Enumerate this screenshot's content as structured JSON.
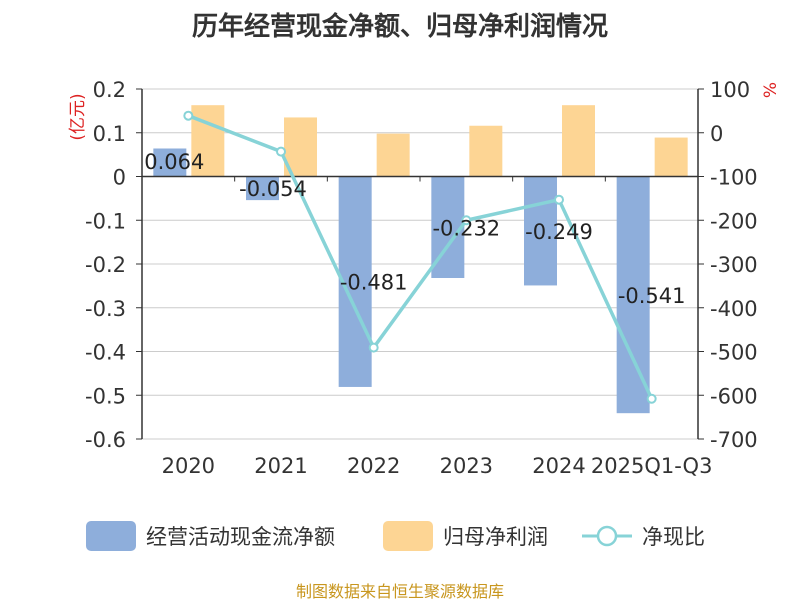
{
  "chart_data": {
    "type": "bar",
    "title": "历年经营现金净额、归母净利润情况",
    "categories": [
      "2020",
      "2021",
      "2022",
      "2023",
      "2024",
      "2025Q1-Q3"
    ],
    "series": [
      {
        "name": "经营活动现金流净额",
        "type": "bar",
        "axis": "left",
        "color": "#8eaedb",
        "values": [
          0.064,
          -0.054,
          -0.481,
          -0.232,
          -0.249,
          -0.541
        ],
        "labels": [
          "0.064",
          "-0.054",
          "-0.481",
          "-0.232",
          "-0.249",
          "-0.541"
        ]
      },
      {
        "name": "归母净利润",
        "type": "bar",
        "axis": "left",
        "color": "#fdd594",
        "values": [
          0.163,
          0.135,
          0.098,
          0.116,
          0.163,
          0.089
        ]
      },
      {
        "name": "净现比",
        "type": "line",
        "axis": "right",
        "color": "#87d3d7",
        "values": [
          39,
          -43,
          -491,
          -200,
          -153,
          -608
        ]
      }
    ],
    "y_left": {
      "label": "(亿元)",
      "min": -0.6,
      "max": 0.2,
      "ticks": [
        0.2,
        0.1,
        0,
        -0.1,
        -0.2,
        -0.3,
        -0.4,
        -0.5,
        -0.6
      ],
      "tick_labels": [
        "0.2",
        "0.1",
        "0",
        "-0.1",
        "-0.2",
        "-0.3",
        "-0.4",
        "-0.5",
        "-0.6"
      ]
    },
    "y_right": {
      "label": "%",
      "min": -700,
      "max": 100,
      "ticks": [
        100,
        0,
        -100,
        -200,
        -300,
        -400,
        -500,
        -600,
        -700
      ],
      "tick_labels": [
        "100",
        "0",
        "-100",
        "-200",
        "-300",
        "-400",
        "-500",
        "-600",
        "-700"
      ]
    },
    "grid": true,
    "legend_position": "bottom"
  },
  "source": "制图数据来自恒生聚源数据库"
}
